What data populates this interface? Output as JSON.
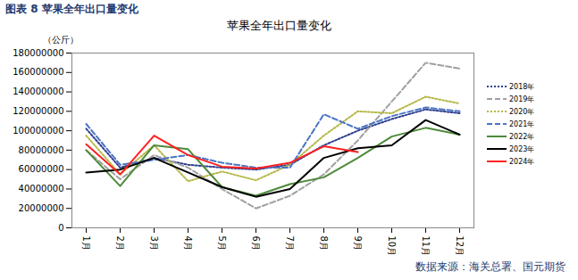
{
  "chart_data": {
    "type": "line",
    "figure_label": "图表 8  苹果全年出口量变化",
    "title": "苹果全年出口量变化",
    "y_label": "（公斤）",
    "source": "数据来源：海关总署、国元期货",
    "categories": [
      "1月",
      "2月",
      "3月",
      "4月",
      "5月",
      "6月",
      "7月",
      "8月",
      "9月",
      "10月",
      "11月",
      "12月"
    ],
    "ylim": [
      0,
      180000000
    ],
    "yticks": [
      0,
      20000000,
      40000000,
      60000000,
      80000000,
      100000000,
      120000000,
      140000000,
      160000000,
      180000000
    ],
    "grid": false,
    "legend": "right",
    "series": [
      {
        "name": "2018年",
        "color": "#2e3f8f",
        "line_style": "dotted",
        "values": [
          102000000,
          62000000,
          72000000,
          65000000,
          62000000,
          60000000,
          65000000,
          85000000,
          100000000,
          112000000,
          122000000,
          118000000
        ]
      },
      {
        "name": "2019年",
        "color": "#a0a0a0",
        "line_style": "dashed",
        "values": [
          80000000,
          50000000,
          75000000,
          62000000,
          40000000,
          20000000,
          33000000,
          55000000,
          90000000,
          130000000,
          170000000,
          164000000
        ]
      },
      {
        "name": "2020年",
        "color": "#b5b84a",
        "line_style": "dotted",
        "values": [
          95000000,
          55000000,
          85000000,
          48000000,
          58000000,
          49000000,
          65000000,
          95000000,
          120000000,
          118000000,
          135000000,
          128000000
        ]
      },
      {
        "name": "2021年",
        "color": "#4a74c4",
        "line_style": "dashed",
        "values": [
          107000000,
          65000000,
          70000000,
          75000000,
          67000000,
          62000000,
          62000000,
          117000000,
          102000000,
          115000000,
          124000000,
          120000000
        ]
      },
      {
        "name": "2022年",
        "color": "#4e8a3a",
        "line_style": "solid",
        "values": [
          80000000,
          43000000,
          85000000,
          81000000,
          42000000,
          33000000,
          45000000,
          52000000,
          72000000,
          94000000,
          103000000,
          96000000
        ]
      },
      {
        "name": "2023年",
        "color": "#000000",
        "line_style": "solid",
        "values": [
          57000000,
          60000000,
          72000000,
          57000000,
          42000000,
          32000000,
          40000000,
          72000000,
          82000000,
          85000000,
          111000000,
          96000000
        ]
      },
      {
        "name": "2024年",
        "color": "#ff2020",
        "line_style": "solid",
        "values": [
          86000000,
          55000000,
          95000000,
          75000000,
          63000000,
          61000000,
          67000000,
          84000000,
          78000000,
          null,
          null,
          null
        ]
      }
    ]
  }
}
